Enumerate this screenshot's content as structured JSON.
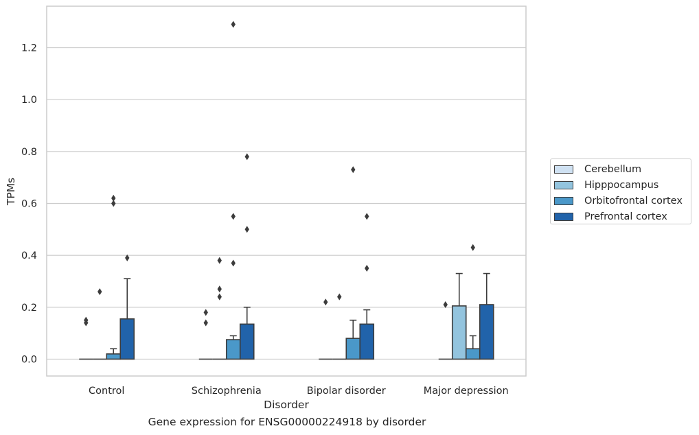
{
  "chart_data": {
    "type": "bar",
    "title": "Gene expression for ENSG00000224918 by disorder",
    "xlabel": "Disorder",
    "ylabel": "TPMs",
    "ylim": [
      -0.065,
      1.36
    ],
    "yticks": [
      0.0,
      0.2,
      0.4,
      0.6,
      0.8,
      1.0,
      1.2
    ],
    "ytick_labels": [
      "0.0",
      "0.2",
      "0.4",
      "0.6",
      "0.8",
      "1.0",
      "1.2"
    ],
    "categories": [
      "Control",
      "Schizophrenia",
      "Bipolar disorder",
      "Major depression"
    ],
    "grid": "horizontal",
    "legend_position": "right",
    "series": [
      {
        "name": "Cerebellum",
        "color": "#cfe1f2",
        "values": [
          0.0,
          0.0,
          0.0,
          0.0
        ],
        "whisker_high": [
          null,
          null,
          null,
          null
        ],
        "outliers": [
          [
            0.14,
            0.15
          ],
          [
            0.14,
            0.18
          ],
          [
            0.22
          ],
          [
            0.21
          ]
        ]
      },
      {
        "name": "Hipppocampus",
        "color": "#93c4de",
        "values": [
          0.0,
          0.0,
          0.0,
          0.205
        ],
        "whisker_high": [
          null,
          null,
          null,
          0.33
        ],
        "outliers": [
          [
            0.26
          ],
          [
            0.24,
            0.27,
            0.38
          ],
          [
            0.24
          ],
          []
        ]
      },
      {
        "name": "Orbitofrontal cortex",
        "color": "#4a98c9",
        "values": [
          0.02,
          0.075,
          0.08,
          0.04
        ],
        "whisker_high": [
          0.04,
          0.09,
          0.15,
          0.09
        ],
        "outliers": [
          [
            0.6,
            0.62
          ],
          [
            0.37,
            0.55,
            1.29
          ],
          [
            0.73
          ],
          [
            0.43
          ]
        ]
      },
      {
        "name": "Prefrontal cortex",
        "color": "#2163aa",
        "values": [
          0.155,
          0.135,
          0.135,
          0.21
        ],
        "whisker_high": [
          0.31,
          0.2,
          0.19,
          0.33
        ],
        "outliers": [
          [
            0.39
          ],
          [
            0.5,
            0.78
          ],
          [
            0.35,
            0.55
          ],
          []
        ]
      }
    ]
  }
}
